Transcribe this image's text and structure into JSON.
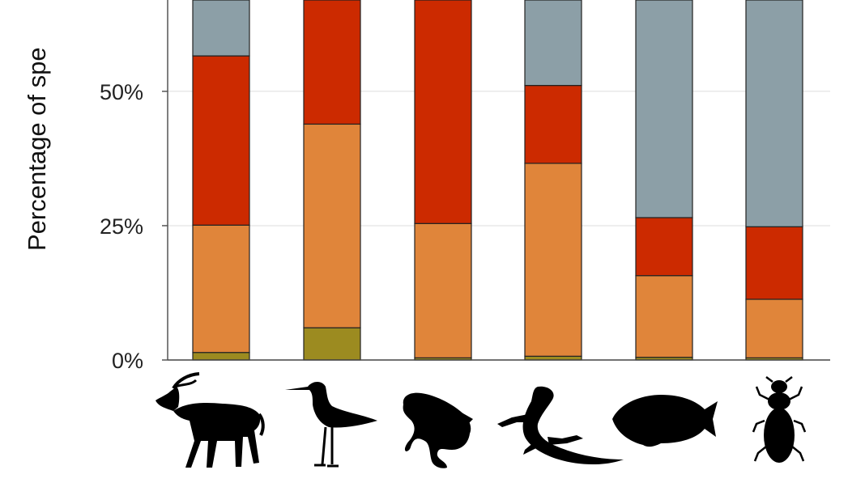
{
  "chart_data": {
    "type": "bar",
    "stacked": true,
    "title": "",
    "xlabel": "",
    "ylabel": "Percentage of spe",
    "ylim": [
      0,
      67
    ],
    "y_ticks": [
      {
        "value": 0,
        "label": "0%"
      },
      {
        "value": 25,
        "label": "25%"
      },
      {
        "value": 50,
        "label": "50%"
      }
    ],
    "grid": "horizontal",
    "legend": "none",
    "categories": [
      "antelope-icon",
      "wader-bird-icon",
      "frog-icon",
      "lizard-icon",
      "fish-icon",
      "beetle-icon"
    ],
    "series": [
      {
        "color": "#9c8b20",
        "values": [
          1.4,
          6.0,
          0.4,
          0.7,
          0.5,
          0.4
        ]
      },
      {
        "color": "#e0853a",
        "values": [
          23.7,
          37.9,
          25.0,
          35.9,
          15.2,
          10.9
        ]
      },
      {
        "color": "#cc2a00",
        "values": [
          31.5,
          23.1,
          41.6,
          14.5,
          10.8,
          13.5
        ]
      },
      {
        "color": "#8c9fa7",
        "values": [
          10.4,
          0,
          0,
          15.9,
          40.5,
          42.2
        ]
      }
    ]
  }
}
